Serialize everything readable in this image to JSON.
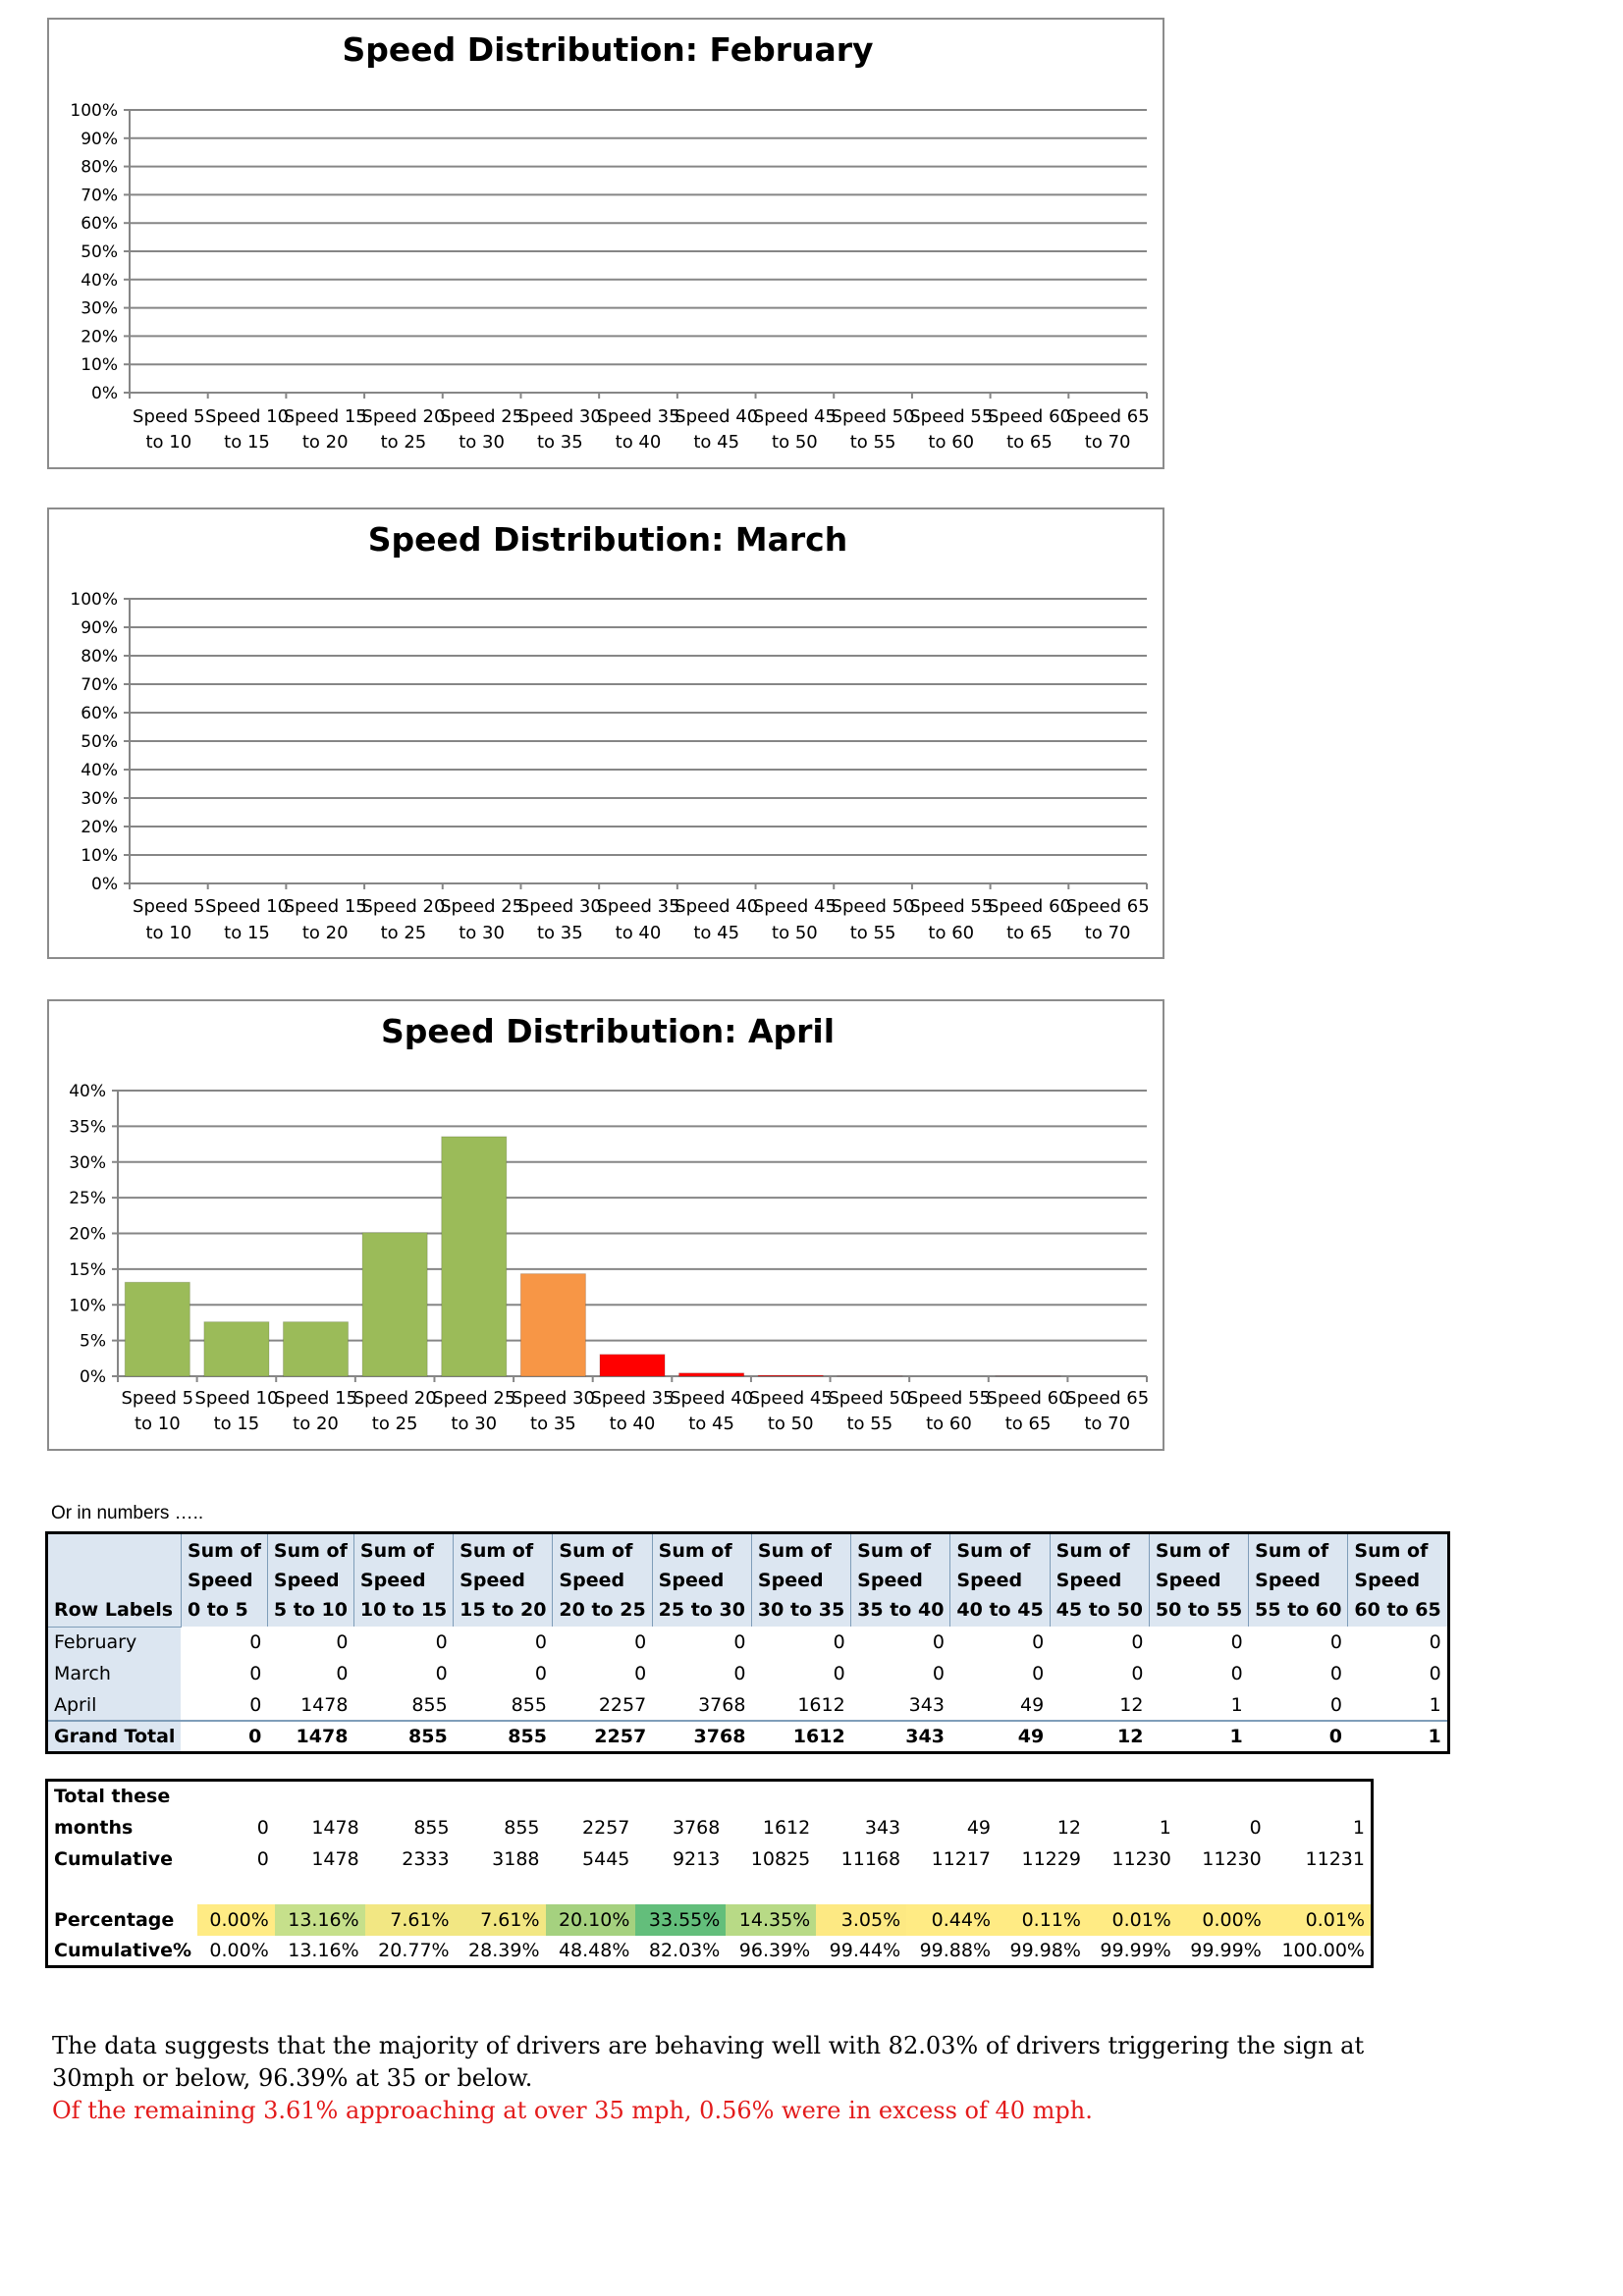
{
  "categories": [
    "Speed 5 to 10",
    "Speed 10 to 15",
    "Speed 15 to 20",
    "Speed 20 to 25",
    "Speed 25 to 30",
    "Speed 30 to 35",
    "Speed 35 to 40",
    "Speed 40 to 45",
    "Speed 45 to 50",
    "Speed 50 to 55",
    "Speed 55 to 60",
    "Speed 60 to 65",
    "Speed 65 to 70"
  ],
  "chart_data": [
    {
      "type": "bar",
      "title": "Speed Distribution: February",
      "categories": [
        "Speed 5 to 10",
        "Speed 10 to 15",
        "Speed 15 to 20",
        "Speed 20 to 25",
        "Speed 25 to 30",
        "Speed 30 to 35",
        "Speed 35 to 40",
        "Speed 40 to 45",
        "Speed 45 to 50",
        "Speed 50 to 55",
        "Speed 55 to 60",
        "Speed 60 to 65",
        "Speed 65 to 70"
      ],
      "values": [
        0,
        0,
        0,
        0,
        0,
        0,
        0,
        0,
        0,
        0,
        0,
        0,
        0
      ],
      "ylim": [
        0,
        100
      ],
      "yticks": [
        "0%",
        "10%",
        "20%",
        "30%",
        "40%",
        "50%",
        "60%",
        "70%",
        "80%",
        "90%",
        "100%"
      ],
      "grid": true
    },
    {
      "type": "bar",
      "title": "Speed Distribution: March",
      "categories": [
        "Speed 5 to 10",
        "Speed 10 to 15",
        "Speed 15 to 20",
        "Speed 20 to 25",
        "Speed 25 to 30",
        "Speed 30 to 35",
        "Speed 35 to 40",
        "Speed 40 to 45",
        "Speed 45 to 50",
        "Speed 50 to 55",
        "Speed 55 to 60",
        "Speed 60 to 65",
        "Speed 65 to 70"
      ],
      "values": [
        0,
        0,
        0,
        0,
        0,
        0,
        0,
        0,
        0,
        0,
        0,
        0,
        0
      ],
      "ylim": [
        0,
        100
      ],
      "yticks": [
        "0%",
        "10%",
        "20%",
        "30%",
        "40%",
        "50%",
        "60%",
        "70%",
        "80%",
        "90%",
        "100%"
      ],
      "grid": true
    },
    {
      "type": "bar",
      "title": "Speed Distribution: April",
      "categories": [
        "Speed 5 to 10",
        "Speed 10 to 15",
        "Speed 15 to 20",
        "Speed 20 to 25",
        "Speed 25 to 30",
        "Speed 30 to 35",
        "Speed 35 to 40",
        "Speed 40 to 45",
        "Speed 45 to 50",
        "Speed 50 to 55",
        "Speed 55 to 60",
        "Speed 60 to 65",
        "Speed 65 to 70"
      ],
      "values": [
        13.16,
        7.61,
        7.61,
        20.1,
        33.55,
        14.35,
        3.05,
        0.44,
        0.11,
        0.01,
        0.0,
        0.01,
        0
      ],
      "bar_colors": [
        "#9bbb59",
        "#9bbb59",
        "#9bbb59",
        "#9bbb59",
        "#9bbb59",
        "#f79646",
        "#ff0000",
        "#ff0000",
        "#ff0000",
        "#ff0000",
        "#ff0000",
        "#ff0000",
        "#ff0000"
      ],
      "ylim": [
        0,
        40
      ],
      "yticks": [
        "0%",
        "5%",
        "10%",
        "15%",
        "20%",
        "25%",
        "30%",
        "35%",
        "40%"
      ],
      "grid": true
    }
  ],
  "intro_note": "Or in numbers …..",
  "pivot": {
    "row_labels_header": "Row Labels",
    "headers": [
      [
        "Sum of",
        "Speed",
        "0 to 5"
      ],
      [
        "Sum of",
        "Speed",
        "5 to 10"
      ],
      [
        "Sum of",
        "Speed",
        "10 to 15"
      ],
      [
        "Sum of",
        "Speed",
        "15 to 20"
      ],
      [
        "Sum of",
        "Speed",
        "20 to 25"
      ],
      [
        "Sum of",
        "Speed",
        "25 to 30"
      ],
      [
        "Sum of",
        "Speed",
        "30 to 35"
      ],
      [
        "Sum of",
        "Speed",
        "35 to 40"
      ],
      [
        "Sum of",
        "Speed",
        "40 to 45"
      ],
      [
        "Sum of",
        "Speed",
        "45 to 50"
      ],
      [
        "Sum of",
        "Speed",
        "50 to 55"
      ],
      [
        "Sum of",
        "Speed",
        "55 to 60"
      ],
      [
        "Sum of",
        "Speed",
        "60 to 65"
      ]
    ],
    "rows": [
      {
        "label": "February",
        "values": [
          "0",
          "0",
          "0",
          "0",
          "0",
          "0",
          "0",
          "0",
          "0",
          "0",
          "0",
          "0",
          "0"
        ]
      },
      {
        "label": "March",
        "values": [
          "0",
          "0",
          "0",
          "0",
          "0",
          "0",
          "0",
          "0",
          "0",
          "0",
          "0",
          "0",
          "0"
        ]
      },
      {
        "label": "April",
        "values": [
          "0",
          "1478",
          "855",
          "855",
          "2257",
          "3768",
          "1612",
          "343",
          "49",
          "12",
          "1",
          "0",
          "1"
        ]
      }
    ],
    "total": {
      "label": "Grand Total",
      "values": [
        "0",
        "1478",
        "855",
        "855",
        "2257",
        "3768",
        "1612",
        "343",
        "49",
        "12",
        "1",
        "0",
        "1"
      ]
    }
  },
  "summary": {
    "total_label_1": "Total these",
    "total_label_2": "months",
    "totals": [
      "0",
      "1478",
      "855",
      "855",
      "2257",
      "3768",
      "1612",
      "343",
      "49",
      "12",
      "1",
      "0",
      "1"
    ],
    "cumulative_label": "Cumulative",
    "cumulative": [
      "0",
      "1478",
      "2333",
      "3188",
      "5445",
      "9213",
      "10825",
      "11168",
      "11217",
      "11229",
      "11230",
      "11230",
      "11231"
    ],
    "percentage_label": "Percentage",
    "percentage": [
      "0.00%",
      "13.16%",
      "7.61%",
      "7.61%",
      "20.10%",
      "33.55%",
      "14.35%",
      "3.05%",
      "0.44%",
      "0.11%",
      "0.01%",
      "0.00%",
      "0.01%"
    ],
    "percentage_colors": [
      "#ffeb84",
      "#c6e08b",
      "#f2e783",
      "#f2e783",
      "#a5d17f",
      "#63be7b",
      "#b8da86",
      "#fde983",
      "#ffeb84",
      "#ffeb84",
      "#ffeb84",
      "#ffeb84",
      "#ffeb84"
    ],
    "cumulative_pct_label": "Cumulative%",
    "cumulative_pct": [
      "0.00%",
      "13.16%",
      "20.77%",
      "28.39%",
      "48.48%",
      "82.03%",
      "96.39%",
      "99.44%",
      "99.88%",
      "99.98%",
      "99.99%",
      "99.99%",
      "100.00%"
    ]
  },
  "conclusion": {
    "line1": "The data suggests that the majority of drivers are behaving well with 82.03% of drivers triggering the sign at 30mph or below, 96.39% at 35 or below.",
    "line2": "Of the remaining 3.61% approaching at over 35 mph,  0.56% were in excess of 40 mph."
  }
}
